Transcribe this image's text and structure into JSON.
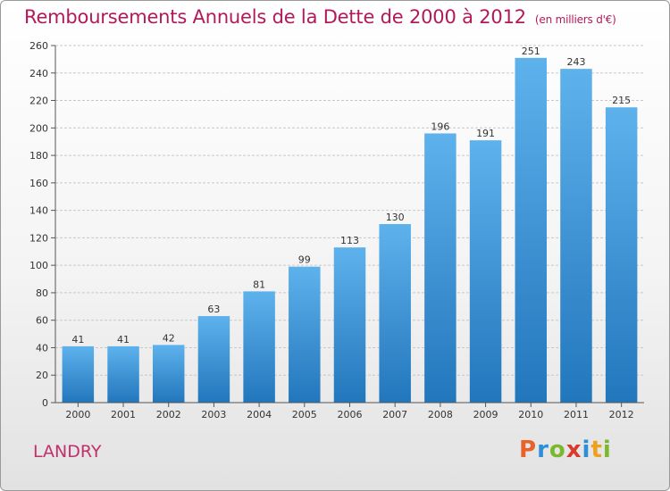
{
  "header": {
    "title": "Remboursements Annuels de la Dette de 2000 à 2012",
    "unit": "(en milliers d'€)"
  },
  "footer": {
    "place": "LANDRY",
    "logo_letters": [
      "P",
      "r",
      "o",
      "x",
      "i",
      "t",
      "i"
    ],
    "logo_colors": [
      "#e8622a",
      "#2e8fd6",
      "#7ab82e",
      "#d93a2b",
      "#2e8fd6",
      "#f0a020",
      "#7ab82e"
    ]
  },
  "chart_data": {
    "type": "bar",
    "title": "Remboursements Annuels de la Dette de 2000 à 2012",
    "categories": [
      "2000",
      "2001",
      "2002",
      "2003",
      "2004",
      "2005",
      "2006",
      "2007",
      "2008",
      "2009",
      "2010",
      "2011",
      "2012"
    ],
    "values": [
      41,
      41,
      42,
      63,
      81,
      99,
      113,
      130,
      196,
      191,
      251,
      243,
      215
    ],
    "ylim": [
      0,
      260
    ],
    "yticks": [
      0,
      20,
      40,
      60,
      80,
      100,
      120,
      140,
      160,
      180,
      200,
      220,
      240,
      260
    ],
    "grid": true,
    "bar_color": "#3e9ae0"
  }
}
